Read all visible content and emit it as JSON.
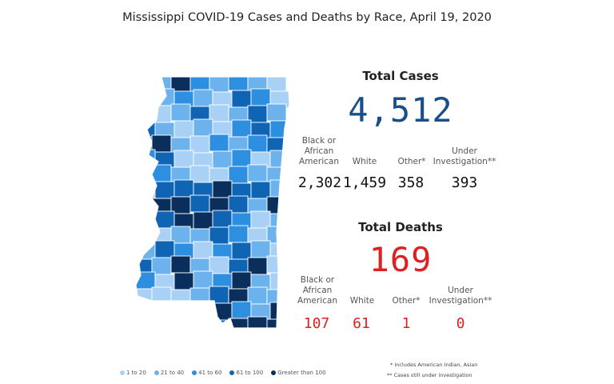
{
  "title": "Mississippi COVID-19 Cases and Deaths by Race, April 19, 2020",
  "cases": {
    "heading": "Total Cases",
    "total": "4,512",
    "categories": [
      {
        "label": "Black or African American",
        "value": "2,302"
      },
      {
        "label": "White",
        "value": "1,459"
      },
      {
        "label": "Other*",
        "value": "358"
      },
      {
        "label": "Under Investigation**",
        "value": "393"
      }
    ]
  },
  "deaths": {
    "heading": "Total Deaths",
    "total": "169",
    "categories": [
      {
        "label": "Black or African American",
        "value": "107"
      },
      {
        "label": "White",
        "value": "61"
      },
      {
        "label": "Other*",
        "value": "1"
      },
      {
        "label": "Under Investigation**",
        "value": "0"
      }
    ]
  },
  "legend": [
    {
      "label": "1 to 20",
      "color": "#a8d1f5"
    },
    {
      "label": "21 to 40",
      "color": "#6cb3ee"
    },
    {
      "label": "41 to 60",
      "color": "#2e8ee0"
    },
    {
      "label": "61 to 100",
      "color": "#0f64b4"
    },
    {
      "label": "Greater than 100",
      "color": "#0a2f5c"
    }
  ],
  "no_data_color": "#c8c8c8",
  "footnotes": [
    "* Includes American Indian, Asian",
    "** Cases still under investigation"
  ]
}
